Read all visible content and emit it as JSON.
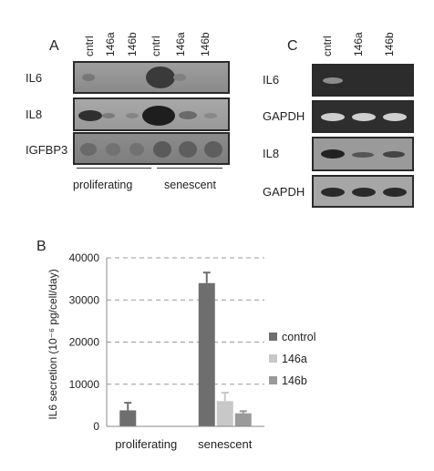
{
  "panel_a": {
    "letter": "A",
    "lanes": [
      "cntrl",
      "146a",
      "146b",
      "cntrl",
      "146a",
      "146b"
    ],
    "rows": [
      "IL6",
      "IL8",
      "IGFBP3"
    ],
    "groups": [
      "proliferating",
      "senescent"
    ]
  },
  "panel_c": {
    "letter": "C",
    "lanes": [
      "cntrl",
      "146a",
      "146b"
    ],
    "rows": [
      "IL6",
      "GAPDH",
      "IL8",
      "GAPDH"
    ]
  },
  "panel_b": {
    "letter": "B"
  },
  "chart_data": {
    "type": "bar",
    "categories": [
      "proliferating",
      "senescent"
    ],
    "series": [
      {
        "name": "control",
        "values": [
          3800,
          34000
        ],
        "errors": [
          1800,
          2500
        ],
        "color": "#6e6e6e"
      },
      {
        "name": "146a",
        "values": [
          100,
          6000
        ],
        "errors": [
          0,
          2000
        ],
        "color": "#c8c8c8"
      },
      {
        "name": "146b",
        "values": [
          100,
          3100
        ],
        "errors": [
          0,
          500
        ],
        "color": "#9a9a9a"
      }
    ],
    "ylabel": "IL6 secretion (10⁻⁶ pg/cell/day)",
    "ylim": [
      0,
      40000
    ],
    "yticks": [
      "0",
      "10000",
      "20000",
      "30000",
      "40000"
    ],
    "grid": "dashed horizontal",
    "legend_position": "right"
  }
}
